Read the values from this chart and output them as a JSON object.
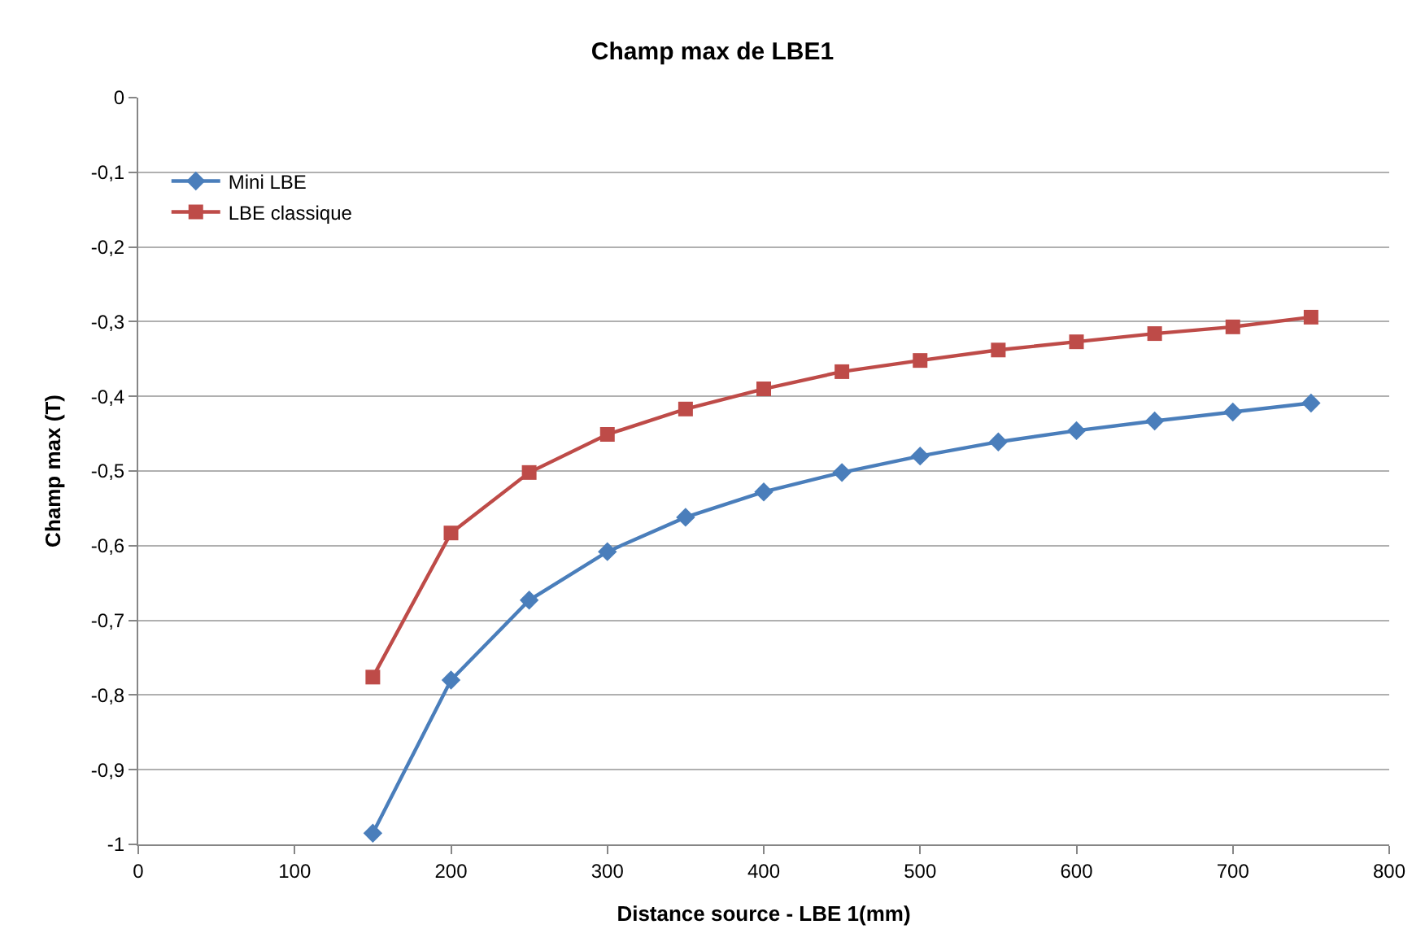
{
  "chart_data": {
    "type": "line",
    "title": "Champ max de LBE1",
    "xlabel": "Distance source - LBE 1(mm)",
    "ylabel": "Champ max (T)",
    "x": [
      150,
      200,
      250,
      300,
      350,
      400,
      450,
      500,
      550,
      600,
      650,
      700,
      750
    ],
    "series": [
      {
        "name": "Mini LBE",
        "color": "#4a7ebb",
        "marker": "diamond",
        "values": [
          -0.985,
          -0.78,
          -0.673,
          -0.608,
          -0.562,
          -0.528,
          -0.502,
          -0.48,
          -0.461,
          -0.446,
          -0.433,
          -0.421,
          -0.409
        ]
      },
      {
        "name": "LBE classique",
        "color": "#be4b48",
        "marker": "square",
        "values": [
          -0.776,
          -0.583,
          -0.502,
          -0.451,
          -0.417,
          -0.39,
          -0.367,
          -0.352,
          -0.338,
          -0.327,
          -0.316,
          -0.307,
          -0.294
        ]
      }
    ],
    "xlim": [
      0,
      800
    ],
    "xticks": [
      0,
      100,
      200,
      300,
      400,
      500,
      600,
      700,
      800
    ],
    "ylim": [
      -1,
      0
    ],
    "yticks": [
      {
        "value": -1,
        "label": "-1"
      },
      {
        "value": -0.9,
        "label": "-0,9"
      },
      {
        "value": -0.8,
        "label": "-0,8"
      },
      {
        "value": -0.7,
        "label": "-0,7"
      },
      {
        "value": -0.6,
        "label": "-0,6"
      },
      {
        "value": -0.5,
        "label": "-0,5"
      },
      {
        "value": -0.4,
        "label": "-0,4"
      },
      {
        "value": -0.3,
        "label": "-0,3"
      },
      {
        "value": -0.2,
        "label": "-0,2"
      },
      {
        "value": -0.1,
        "label": "-0,1"
      },
      {
        "value": 0,
        "label": "0"
      }
    ],
    "grid": "y",
    "legend": "top left",
    "line_style": "solid"
  }
}
